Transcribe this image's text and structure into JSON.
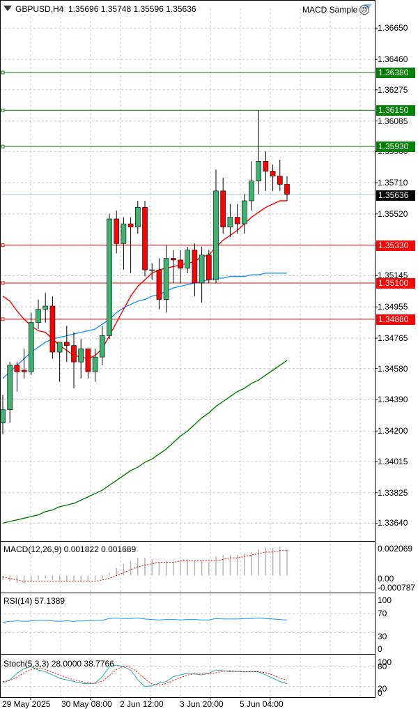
{
  "header": {
    "symbol": "GBPUSD,H4",
    "ohlc": "1.35696 1.35748 1.35596 1.35636",
    "expert_name": "MACD Sample",
    "expert_icon": "frown-icon"
  },
  "price_axis": {
    "labels": [
      "1.36650",
      "1.36460",
      "1.36275",
      "1.36085",
      "1.35900",
      "1.35710",
      "1.35520",
      "1.35330",
      "1.35145",
      "1.34955",
      "1.34765",
      "1.34580",
      "1.34390",
      "1.34200",
      "1.34015",
      "1.33825",
      "1.33640"
    ]
  },
  "price_levels": [
    {
      "price": 1.3638,
      "label": "1.36380",
      "color": "#008000"
    },
    {
      "price": 1.3615,
      "label": "1.36150",
      "color": "#008000"
    },
    {
      "price": 1.3593,
      "label": "1.35930",
      "color": "#008000"
    },
    {
      "price": 1.3533,
      "label": "1.35330",
      "color": "#ff0000"
    },
    {
      "price": 1.351,
      "label": "1.35100",
      "color": "#ff0000"
    },
    {
      "price": 1.3488,
      "label": "1.34880",
      "color": "#ff0000"
    }
  ],
  "current_price": {
    "price": 1.35636,
    "label": "1.35636"
  },
  "time_axis": {
    "labels": [
      "29 May 2025",
      "30 May 08:00",
      "2 Jun 12:00",
      "3 Jun 20:00",
      "5 Jun 04:00"
    ]
  },
  "macd": {
    "label": "MACD(12,26,9) 0.001822 0.001689",
    "axis": [
      "0.002069",
      "0.00",
      "-0.000787"
    ]
  },
  "rsi": {
    "label": "RSI(14) 57.1389",
    "axis": [
      "100",
      "70",
      "30",
      "0"
    ]
  },
  "stoch": {
    "label": "Stoch(5,3,3) 28.0000 38.7766",
    "axis": [
      "100",
      "80",
      "20",
      "0"
    ]
  },
  "colors": {
    "bull": "#3cb371",
    "bear": "#ff0000",
    "ma_fast": "#ff0000",
    "ma_mid": "#1e90ff",
    "ma_slow": "#008000",
    "support": "#ff0000",
    "resistance": "#008000"
  },
  "chart_data": {
    "type": "candlestick",
    "title": "GBPUSD,H4",
    "ylim": [
      1.3354,
      1.3677
    ],
    "candles": [
      {
        "o": 1.3425,
        "h": 1.3442,
        "l": 1.3418,
        "c": 1.3433
      },
      {
        "o": 1.3433,
        "h": 1.3462,
        "l": 1.3425,
        "c": 1.346
      },
      {
        "o": 1.346,
        "h": 1.3462,
        "l": 1.3444,
        "c": 1.3456
      },
      {
        "o": 1.3457,
        "h": 1.347,
        "l": 1.3452,
        "c": 1.3456
      },
      {
        "o": 1.3456,
        "h": 1.3492,
        "l": 1.3454,
        "c": 1.3486
      },
      {
        "o": 1.3486,
        "h": 1.35,
        "l": 1.3482,
        "c": 1.3494
      },
      {
        "o": 1.3494,
        "h": 1.3504,
        "l": 1.3486,
        "c": 1.3496
      },
      {
        "o": 1.3496,
        "h": 1.3502,
        "l": 1.3464,
        "c": 1.3468
      },
      {
        "o": 1.3468,
        "h": 1.3474,
        "l": 1.345,
        "c": 1.3474
      },
      {
        "o": 1.3474,
        "h": 1.3484,
        "l": 1.3462,
        "c": 1.3472
      },
      {
        "o": 1.3472,
        "h": 1.348,
        "l": 1.3446,
        "c": 1.3462
      },
      {
        "o": 1.3462,
        "h": 1.3476,
        "l": 1.3452,
        "c": 1.347
      },
      {
        "o": 1.347,
        "h": 1.347,
        "l": 1.3452,
        "c": 1.3456
      },
      {
        "o": 1.3456,
        "h": 1.347,
        "l": 1.345,
        "c": 1.3465
      },
      {
        "o": 1.3465,
        "h": 1.3484,
        "l": 1.346,
        "c": 1.3478
      },
      {
        "o": 1.3478,
        "h": 1.3552,
        "l": 1.3476,
        "c": 1.3549
      },
      {
        "o": 1.3549,
        "h": 1.3554,
        "l": 1.3528,
        "c": 1.3534
      },
      {
        "o": 1.3534,
        "h": 1.355,
        "l": 1.3518,
        "c": 1.3546
      },
      {
        "o": 1.3546,
        "h": 1.355,
        "l": 1.3516,
        "c": 1.3544
      },
      {
        "o": 1.3544,
        "h": 1.356,
        "l": 1.354,
        "c": 1.3556
      },
      {
        "o": 1.3556,
        "h": 1.356,
        "l": 1.3514,
        "c": 1.3518
      },
      {
        "o": 1.3518,
        "h": 1.3522,
        "l": 1.3512,
        "c": 1.3518
      },
      {
        "o": 1.3518,
        "h": 1.3525,
        "l": 1.3494,
        "c": 1.35
      },
      {
        "o": 1.35,
        "h": 1.3533,
        "l": 1.3492,
        "c": 1.3525
      },
      {
        "o": 1.3525,
        "h": 1.353,
        "l": 1.351,
        "c": 1.3524
      },
      {
        "o": 1.3524,
        "h": 1.353,
        "l": 1.351,
        "c": 1.3519
      },
      {
        "o": 1.3519,
        "h": 1.3532,
        "l": 1.3516,
        "c": 1.353
      },
      {
        "o": 1.353,
        "h": 1.3534,
        "l": 1.3502,
        "c": 1.351
      },
      {
        "o": 1.351,
        "h": 1.3532,
        "l": 1.3498,
        "c": 1.3527
      },
      {
        "o": 1.3527,
        "h": 1.353,
        "l": 1.351,
        "c": 1.3512
      },
      {
        "o": 1.3512,
        "h": 1.3579,
        "l": 1.351,
        "c": 1.3566
      },
      {
        "o": 1.3566,
        "h": 1.3574,
        "l": 1.354,
        "c": 1.3544
      },
      {
        "o": 1.3544,
        "h": 1.3558,
        "l": 1.3538,
        "c": 1.355
      },
      {
        "o": 1.355,
        "h": 1.3558,
        "l": 1.354,
        "c": 1.3546
      },
      {
        "o": 1.3546,
        "h": 1.3564,
        "l": 1.354,
        "c": 1.356
      },
      {
        "o": 1.356,
        "h": 1.3584,
        "l": 1.3554,
        "c": 1.3572
      },
      {
        "o": 1.3572,
        "h": 1.3615,
        "l": 1.3564,
        "c": 1.3584
      },
      {
        "o": 1.3584,
        "h": 1.359,
        "l": 1.3566,
        "c": 1.3578
      },
      {
        "o": 1.3578,
        "h": 1.3582,
        "l": 1.3566,
        "c": 1.3575
      },
      {
        "o": 1.3575,
        "h": 1.3585,
        "l": 1.3566,
        "c": 1.357
      },
      {
        "o": 1.357,
        "h": 1.3575,
        "l": 1.356,
        "c": 1.3564
      }
    ],
    "ma_fast": [
      1.3502,
      1.3499,
      1.3493,
      1.3488,
      1.3484,
      1.3481,
      1.348,
      1.3476,
      1.3472,
      1.3469,
      1.3466,
      1.3465,
      1.3464,
      1.3466,
      1.347,
      1.3478,
      1.3486,
      1.3494,
      1.3502,
      1.3508,
      1.3512,
      1.3516,
      1.3518,
      1.3519,
      1.352,
      1.3521,
      1.3522,
      1.3523,
      1.3526,
      1.3527,
      1.3532,
      1.3536,
      1.3539,
      1.3542,
      1.3546,
      1.355,
      1.3553,
      1.3556,
      1.3558,
      1.356,
      1.356
    ],
    "ma_mid": [
      1.3452,
      1.3456,
      1.346,
      1.3464,
      1.3468,
      1.3471,
      1.3474,
      1.3476,
      1.3477,
      1.3478,
      1.3479,
      1.348,
      1.3481,
      1.3482,
      1.3485,
      1.3488,
      1.3492,
      1.3495,
      1.3497,
      1.3499,
      1.35,
      1.3502,
      1.3503,
      1.3505,
      1.3507,
      1.3508,
      1.3509,
      1.351,
      1.3511,
      1.3512,
      1.3513,
      1.3513,
      1.3514,
      1.3514,
      1.3514,
      1.3515,
      1.3515,
      1.3516,
      1.3516,
      1.3516,
      1.3516
    ],
    "ma_slow": [
      1.3364,
      1.3365,
      1.3366,
      1.3367,
      1.3368,
      1.3369,
      1.3371,
      1.3372,
      1.3374,
      1.3375,
      1.3376,
      1.3378,
      1.338,
      1.3382,
      1.3384,
      1.3387,
      1.339,
      1.3393,
      1.3396,
      1.3398,
      1.3401,
      1.3403,
      1.3406,
      1.3409,
      1.3413,
      1.3417,
      1.342,
      1.3424,
      1.3428,
      1.3431,
      1.3435,
      1.3438,
      1.3441,
      1.3444,
      1.3446,
      1.3449,
      1.3451,
      1.3454,
      1.3457,
      1.346,
      1.3463
    ],
    "macd_hist": [
      -0.0003,
      -0.0004,
      -0.0005,
      -0.0005,
      -0.0004,
      -0.0003,
      -0.0002,
      -0.0003,
      -0.0004,
      -0.0004,
      -0.0004,
      -0.0004,
      -0.0004,
      -0.0003,
      -0.0002,
      0.0002,
      0.0005,
      0.0008,
      0.001,
      0.0012,
      0.0012,
      0.0011,
      0.0009,
      0.001,
      0.001,
      0.001,
      0.0011,
      0.001,
      0.001,
      0.0009,
      0.0013,
      0.0014,
      0.0014,
      0.0014,
      0.0015,
      0.0016,
      0.0018,
      0.0019,
      0.0019,
      0.002,
      0.0018
    ],
    "macd_signal": [
      -0.0001,
      -0.0002,
      -0.0003,
      -0.0004,
      -0.0004,
      -0.0004,
      -0.0004,
      -0.0004,
      -0.0004,
      -0.0004,
      -0.0004,
      -0.0004,
      -0.0004,
      -0.0004,
      -0.0003,
      -0.0002,
      0.0,
      0.0002,
      0.0004,
      0.0006,
      0.0007,
      0.0008,
      0.0009,
      0.0009,
      0.0009,
      0.001,
      0.001,
      0.001,
      0.001,
      0.001,
      0.001,
      0.0011,
      0.0012,
      0.0012,
      0.0013,
      0.0014,
      0.0015,
      0.0016,
      0.0016,
      0.0017,
      0.0017
    ],
    "rsi": [
      52,
      54,
      55,
      54,
      55,
      56,
      56,
      55,
      54,
      55,
      54,
      55,
      55,
      56,
      56,
      60,
      61,
      60,
      60,
      61,
      59,
      58,
      57,
      58,
      58,
      57,
      58,
      58,
      57,
      57,
      60,
      59,
      59,
      59,
      60,
      60,
      61,
      60,
      59,
      58,
      57
    ],
    "stoch_k": [
      30,
      40,
      60,
      75,
      80,
      70,
      65,
      55,
      45,
      40,
      35,
      30,
      28,
      30,
      50,
      80,
      85,
      80,
      70,
      40,
      20,
      22,
      30,
      35,
      50,
      55,
      60,
      58,
      55,
      60,
      70,
      68,
      65,
      66,
      64,
      66,
      64,
      55,
      45,
      35,
      28
    ],
    "stoch_d": [
      35,
      38,
      48,
      62,
      72,
      75,
      72,
      63,
      55,
      47,
      40,
      35,
      31,
      29,
      36,
      53,
      72,
      82,
      78,
      63,
      43,
      27,
      24,
      29,
      38,
      47,
      55,
      58,
      58,
      58,
      62,
      66,
      68,
      66,
      65,
      65,
      65,
      62,
      55,
      45,
      39
    ]
  }
}
